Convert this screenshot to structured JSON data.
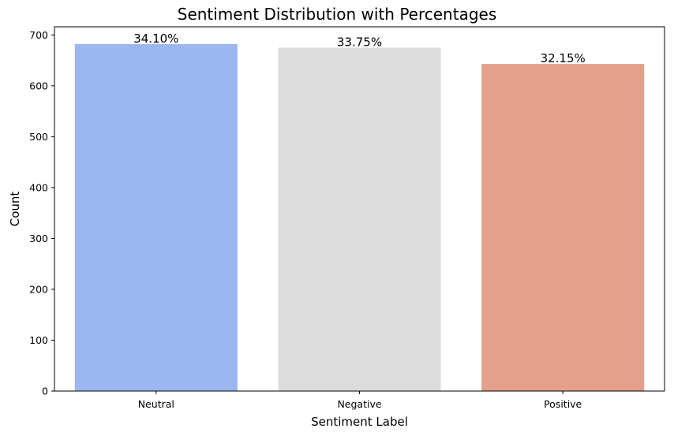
{
  "chart_data": {
    "type": "bar",
    "title": "Sentiment Distribution with Percentages",
    "xlabel": "Sentiment Label",
    "ylabel": "Count",
    "categories": [
      "Neutral",
      "Negative",
      "Positive"
    ],
    "values": [
      682,
      675,
      643
    ],
    "data_labels": [
      "34.10%",
      "33.75%",
      "32.15%"
    ],
    "colors": [
      "#9bb6f0",
      "#dcdcdc",
      "#e4a189"
    ],
    "ylim": [
      0,
      716
    ],
    "yticks": [
      0,
      100,
      200,
      300,
      400,
      500,
      600,
      700
    ],
    "grid": false,
    "legend": "none"
  }
}
